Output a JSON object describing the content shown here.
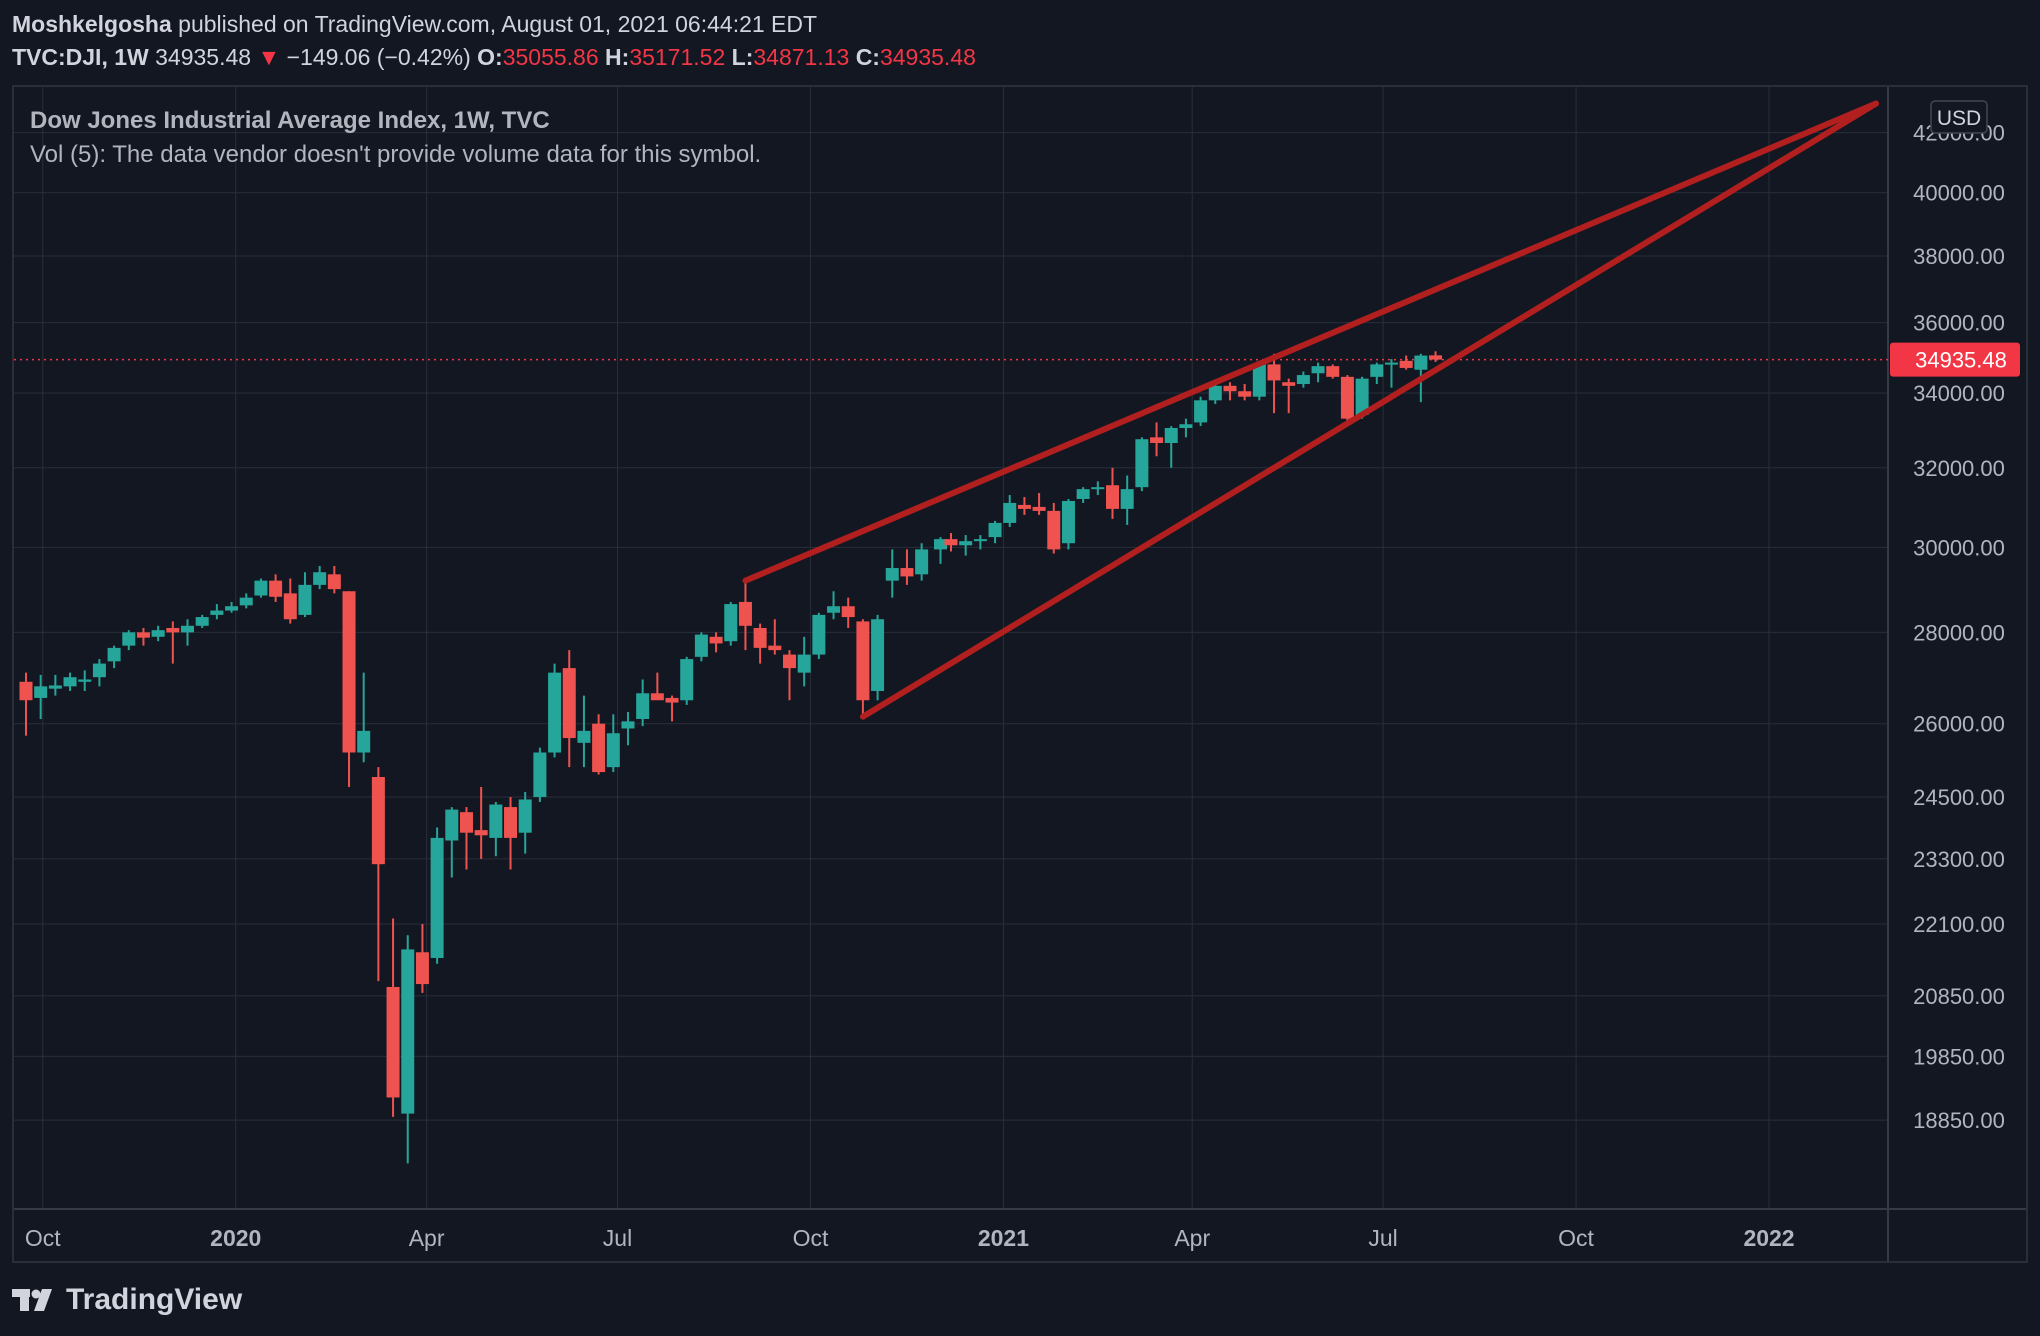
{
  "header": {
    "author": "Moshkelgosha",
    "published_text": "published on TradingView.com, August 01, 2021 06:44:21 EDT",
    "symbol": "TVC:DJI, 1W",
    "last_price": "34935.48",
    "change": "−149.06 (−0.42%)",
    "open_label": "O:",
    "open": "35055.86",
    "high_label": "H:",
    "high": "35171.52",
    "low_label": "L:",
    "low": "34871.13",
    "close_label": "C:",
    "close": "34935.48"
  },
  "legend": {
    "title": "Dow Jones Industrial Average Index, 1W, TVC",
    "volume_note": "Vol (5): The data vendor doesn't provide volume data for this symbol."
  },
  "footer": {
    "brand": "TradingView"
  },
  "colors": {
    "background": "#131722",
    "grid": "#2a2e39",
    "up": "#26a69a",
    "down": "#ef5350",
    "trendline": "#b21f1f",
    "text": "#d1d4dc",
    "price_label_bg": "#f23645"
  },
  "chart_data": {
    "type": "candlestick",
    "title": "Dow Jones Industrial Average Index, 1W, TVC",
    "currency": "USD",
    "y_scale": "log",
    "ylim": [
      18000,
      43300
    ],
    "xlim": [
      "2019-09-23",
      "2022-02-21"
    ],
    "y_ticks": [
      {
        "value": 42000,
        "label": "42000.00"
      },
      {
        "value": 40000,
        "label": "40000.00"
      },
      {
        "value": 38000,
        "label": "38000.00"
      },
      {
        "value": 36000,
        "label": "36000.00"
      },
      {
        "value": 34000,
        "label": "34000.00"
      },
      {
        "value": 32000,
        "label": "32000.00"
      },
      {
        "value": 30000,
        "label": "30000.00"
      },
      {
        "value": 28000,
        "label": "28000.00"
      },
      {
        "value": 26000,
        "label": "26000.00"
      },
      {
        "value": 24500,
        "label": "24500.00"
      },
      {
        "value": 23300,
        "label": "23300.00"
      },
      {
        "value": 22100,
        "label": "22100.00"
      },
      {
        "value": 20850,
        "label": "20850.00"
      },
      {
        "value": 19850,
        "label": "19850.00"
      },
      {
        "value": 18850,
        "label": "18850.00"
      }
    ],
    "x_ticks": [
      {
        "date": "2019-10-01",
        "label": "Oct",
        "bold": false
      },
      {
        "date": "2020-01-01",
        "label": "2020",
        "bold": true
      },
      {
        "date": "2020-04-01",
        "label": "Apr",
        "bold": false
      },
      {
        "date": "2020-07-01",
        "label": "Jul",
        "bold": false
      },
      {
        "date": "2020-10-01",
        "label": "Oct",
        "bold": false
      },
      {
        "date": "2021-01-01",
        "label": "2021",
        "bold": true
      },
      {
        "date": "2021-04-01",
        "label": "Apr",
        "bold": false
      },
      {
        "date": "2021-07-01",
        "label": "Jul",
        "bold": false
      },
      {
        "date": "2021-10-01",
        "label": "Oct",
        "bold": false
      },
      {
        "date": "2022-01-01",
        "label": "2022",
        "bold": true
      }
    ],
    "last_price": {
      "value": 34935.48,
      "label": "34935.48"
    },
    "candles": [
      {
        "date": "2019-09-23",
        "o": 26900,
        "h": 27100,
        "l": 25750,
        "c": 26500
      },
      {
        "date": "2019-09-30",
        "o": 26550,
        "h": 27050,
        "l": 26100,
        "c": 26800
      },
      {
        "date": "2019-10-07",
        "o": 26750,
        "h": 27050,
        "l": 26600,
        "c": 26820
      },
      {
        "date": "2019-10-14",
        "o": 26800,
        "h": 27100,
        "l": 26700,
        "c": 27000
      },
      {
        "date": "2019-10-21",
        "o": 26900,
        "h": 27150,
        "l": 26700,
        "c": 26950
      },
      {
        "date": "2019-10-28",
        "o": 27000,
        "h": 27400,
        "l": 26800,
        "c": 27300
      },
      {
        "date": "2019-11-04",
        "o": 27350,
        "h": 27700,
        "l": 27200,
        "c": 27650
      },
      {
        "date": "2019-11-11",
        "o": 27700,
        "h": 28050,
        "l": 27600,
        "c": 28000
      },
      {
        "date": "2019-11-18",
        "o": 28000,
        "h": 28100,
        "l": 27700,
        "c": 27880
      },
      {
        "date": "2019-11-25",
        "o": 27900,
        "h": 28150,
        "l": 27800,
        "c": 28050
      },
      {
        "date": "2019-12-02",
        "o": 28100,
        "h": 28250,
        "l": 27300,
        "c": 28000
      },
      {
        "date": "2019-12-09",
        "o": 28000,
        "h": 28300,
        "l": 27700,
        "c": 28150
      },
      {
        "date": "2019-12-16",
        "o": 28150,
        "h": 28400,
        "l": 28100,
        "c": 28350
      },
      {
        "date": "2019-12-23",
        "o": 28400,
        "h": 28650,
        "l": 28300,
        "c": 28500
      },
      {
        "date": "2019-12-30",
        "o": 28500,
        "h": 28700,
        "l": 28450,
        "c": 28600
      },
      {
        "date": "2020-01-06",
        "o": 28620,
        "h": 28900,
        "l": 28550,
        "c": 28800
      },
      {
        "date": "2020-01-13",
        "o": 28850,
        "h": 29250,
        "l": 28800,
        "c": 29200
      },
      {
        "date": "2020-01-20",
        "o": 29200,
        "h": 29350,
        "l": 28700,
        "c": 28820
      },
      {
        "date": "2020-01-27",
        "o": 28900,
        "h": 29250,
        "l": 28200,
        "c": 28300
      },
      {
        "date": "2020-02-03",
        "o": 28400,
        "h": 29400,
        "l": 28350,
        "c": 29100
      },
      {
        "date": "2020-02-10",
        "o": 29100,
        "h": 29550,
        "l": 29000,
        "c": 29400
      },
      {
        "date": "2020-02-17",
        "o": 29350,
        "h": 29550,
        "l": 28900,
        "c": 29000
      },
      {
        "date": "2020-02-24",
        "o": 28950,
        "h": 28950,
        "l": 24700,
        "c": 25400
      },
      {
        "date": "2020-03-02",
        "o": 25400,
        "h": 27100,
        "l": 25200,
        "c": 25850
      },
      {
        "date": "2020-03-09",
        "o": 24900,
        "h": 25100,
        "l": 21100,
        "c": 23200
      },
      {
        "date": "2020-03-16",
        "o": 21000,
        "h": 22200,
        "l": 18900,
        "c": 19200
      },
      {
        "date": "2020-03-23",
        "o": 18950,
        "h": 21900,
        "l": 18200,
        "c": 21650
      },
      {
        "date": "2020-03-30",
        "o": 21600,
        "h": 22100,
        "l": 20900,
        "c": 21050
      },
      {
        "date": "2020-04-06",
        "o": 21500,
        "h": 23900,
        "l": 21400,
        "c": 23700
      },
      {
        "date": "2020-04-13",
        "o": 23650,
        "h": 24300,
        "l": 22950,
        "c": 24250
      },
      {
        "date": "2020-04-20",
        "o": 24200,
        "h": 24300,
        "l": 23100,
        "c": 23800
      },
      {
        "date": "2020-04-27",
        "o": 23850,
        "h": 24700,
        "l": 23300,
        "c": 23750
      },
      {
        "date": "2020-05-04",
        "o": 23700,
        "h": 24400,
        "l": 23350,
        "c": 24350
      },
      {
        "date": "2020-05-11",
        "o": 24300,
        "h": 24500,
        "l": 23100,
        "c": 23700
      },
      {
        "date": "2020-05-18",
        "o": 23800,
        "h": 24600,
        "l": 23400,
        "c": 24450
      },
      {
        "date": "2020-05-25",
        "o": 24500,
        "h": 25500,
        "l": 24400,
        "c": 25400
      },
      {
        "date": "2020-06-01",
        "o": 25400,
        "h": 27300,
        "l": 25300,
        "c": 27100
      },
      {
        "date": "2020-06-08",
        "o": 27200,
        "h": 27600,
        "l": 25100,
        "c": 25700
      },
      {
        "date": "2020-06-15",
        "o": 25600,
        "h": 26600,
        "l": 25100,
        "c": 25850
      },
      {
        "date": "2020-06-22",
        "o": 26000,
        "h": 26200,
        "l": 24950,
        "c": 25000
      },
      {
        "date": "2020-06-29",
        "o": 25100,
        "h": 26200,
        "l": 25000,
        "c": 25800
      },
      {
        "date": "2020-07-06",
        "o": 25900,
        "h": 26250,
        "l": 25550,
        "c": 26050
      },
      {
        "date": "2020-07-13",
        "o": 26100,
        "h": 26950,
        "l": 25950,
        "c": 26650
      },
      {
        "date": "2020-07-20",
        "o": 26650,
        "h": 27100,
        "l": 26550,
        "c": 26500
      },
      {
        "date": "2020-07-27",
        "o": 26550,
        "h": 26600,
        "l": 26050,
        "c": 26450
      },
      {
        "date": "2020-08-03",
        "o": 26500,
        "h": 27450,
        "l": 26400,
        "c": 27400
      },
      {
        "date": "2020-08-10",
        "o": 27450,
        "h": 28000,
        "l": 27350,
        "c": 27950
      },
      {
        "date": "2020-08-17",
        "o": 27900,
        "h": 28000,
        "l": 27550,
        "c": 27750
      },
      {
        "date": "2020-08-24",
        "o": 27800,
        "h": 28700,
        "l": 27700,
        "c": 28650
      },
      {
        "date": "2020-08-31",
        "o": 28700,
        "h": 29200,
        "l": 27600,
        "c": 28150
      },
      {
        "date": "2020-09-07",
        "o": 28100,
        "h": 28200,
        "l": 27300,
        "c": 27650
      },
      {
        "date": "2020-09-14",
        "o": 27700,
        "h": 28300,
        "l": 27500,
        "c": 27600
      },
      {
        "date": "2020-09-21",
        "o": 27500,
        "h": 27600,
        "l": 26500,
        "c": 27200
      },
      {
        "date": "2020-09-28",
        "o": 27100,
        "h": 27900,
        "l": 26800,
        "c": 27500
      },
      {
        "date": "2020-10-05",
        "o": 27500,
        "h": 28450,
        "l": 27400,
        "c": 28400
      },
      {
        "date": "2020-10-12",
        "o": 28450,
        "h": 28950,
        "l": 28300,
        "c": 28600
      },
      {
        "date": "2020-10-19",
        "o": 28600,
        "h": 28800,
        "l": 28100,
        "c": 28350
      },
      {
        "date": "2020-10-26",
        "o": 28250,
        "h": 28300,
        "l": 26150,
        "c": 26500
      },
      {
        "date": "2020-11-02",
        "o": 26700,
        "h": 28400,
        "l": 26500,
        "c": 28300
      },
      {
        "date": "2020-11-09",
        "o": 29200,
        "h": 29950,
        "l": 28800,
        "c": 29500
      },
      {
        "date": "2020-11-16",
        "o": 29500,
        "h": 29950,
        "l": 29100,
        "c": 29300
      },
      {
        "date": "2020-11-23",
        "o": 29350,
        "h": 30100,
        "l": 29200,
        "c": 29950
      },
      {
        "date": "2020-12-02",
        "o": 29950,
        "h": 30250,
        "l": 29600,
        "c": 30200
      },
      {
        "date": "2020-12-07",
        "o": 30200,
        "h": 30350,
        "l": 29900,
        "c": 30050
      },
      {
        "date": "2020-12-14",
        "o": 30050,
        "h": 30300,
        "l": 29800,
        "c": 30150
      },
      {
        "date": "2020-12-21",
        "o": 30150,
        "h": 30300,
        "l": 29950,
        "c": 30200
      },
      {
        "date": "2020-12-28",
        "o": 30250,
        "h": 30650,
        "l": 30100,
        "c": 30600
      },
      {
        "date": "2021-01-04",
        "o": 30600,
        "h": 31300,
        "l": 30500,
        "c": 31100
      },
      {
        "date": "2021-01-11",
        "o": 31050,
        "h": 31250,
        "l": 30800,
        "c": 30950
      },
      {
        "date": "2021-01-18",
        "o": 31000,
        "h": 31350,
        "l": 30800,
        "c": 30900
      },
      {
        "date": "2021-01-25",
        "o": 30900,
        "h": 31100,
        "l": 29850,
        "c": 29950
      },
      {
        "date": "2021-02-01",
        "o": 30100,
        "h": 31200,
        "l": 29950,
        "c": 31150
      },
      {
        "date": "2021-02-08",
        "o": 31200,
        "h": 31500,
        "l": 31100,
        "c": 31450
      },
      {
        "date": "2021-02-15",
        "o": 31450,
        "h": 31650,
        "l": 31300,
        "c": 31500
      },
      {
        "date": "2021-02-22",
        "o": 31550,
        "h": 32000,
        "l": 30700,
        "c": 30950
      },
      {
        "date": "2021-03-01",
        "o": 30950,
        "h": 31800,
        "l": 30550,
        "c": 31450
      },
      {
        "date": "2021-03-08",
        "o": 31500,
        "h": 32800,
        "l": 31400,
        "c": 32750
      },
      {
        "date": "2021-03-15",
        "o": 32800,
        "h": 33200,
        "l": 32300,
        "c": 32650
      },
      {
        "date": "2021-03-22",
        "o": 32650,
        "h": 33100,
        "l": 32000,
        "c": 33050
      },
      {
        "date": "2021-03-29",
        "o": 33050,
        "h": 33300,
        "l": 32800,
        "c": 33150
      },
      {
        "date": "2021-04-05",
        "o": 33200,
        "h": 33900,
        "l": 33100,
        "c": 33800
      },
      {
        "date": "2021-04-12",
        "o": 33800,
        "h": 34300,
        "l": 33700,
        "c": 34200
      },
      {
        "date": "2021-04-19",
        "o": 34200,
        "h": 34300,
        "l": 33800,
        "c": 34050
      },
      {
        "date": "2021-04-26",
        "o": 34050,
        "h": 34250,
        "l": 33800,
        "c": 33900
      },
      {
        "date": "2021-05-03",
        "o": 33900,
        "h": 34850,
        "l": 33800,
        "c": 34800
      },
      {
        "date": "2021-05-10",
        "o": 34800,
        "h": 35100,
        "l": 33450,
        "c": 34350
      },
      {
        "date": "2021-05-17",
        "o": 34300,
        "h": 34400,
        "l": 33450,
        "c": 34200
      },
      {
        "date": "2021-05-24",
        "o": 34250,
        "h": 34600,
        "l": 34150,
        "c": 34500
      },
      {
        "date": "2021-05-31",
        "o": 34550,
        "h": 34850,
        "l": 34300,
        "c": 34750
      },
      {
        "date": "2021-06-07",
        "o": 34750,
        "h": 34800,
        "l": 34400,
        "c": 34450
      },
      {
        "date": "2021-06-14",
        "o": 34450,
        "h": 34500,
        "l": 33250,
        "c": 33300
      },
      {
        "date": "2021-06-21",
        "o": 33400,
        "h": 34450,
        "l": 33300,
        "c": 34400
      },
      {
        "date": "2021-06-28",
        "o": 34450,
        "h": 34850,
        "l": 34250,
        "c": 34800
      },
      {
        "date": "2021-07-05",
        "o": 34800,
        "h": 34950,
        "l": 34150,
        "c": 34850
      },
      {
        "date": "2021-07-12",
        "o": 34900,
        "h": 35050,
        "l": 34650,
        "c": 34700
      },
      {
        "date": "2021-07-19",
        "o": 34650,
        "h": 35100,
        "l": 33750,
        "c": 35050
      },
      {
        "date": "2021-07-26",
        "o": 35055.86,
        "h": 35171.52,
        "l": 34871.13,
        "c": 34935.48
      }
    ],
    "trendlines": [
      {
        "name": "upper",
        "from": {
          "date": "2020-08-31",
          "price": 29200
        },
        "to": {
          "date": "2022-02-21",
          "price": 43000
        }
      },
      {
        "name": "lower",
        "from": {
          "date": "2020-10-26",
          "price": 26150
        },
        "to": {
          "date": "2022-02-21",
          "price": 43000
        }
      }
    ]
  }
}
